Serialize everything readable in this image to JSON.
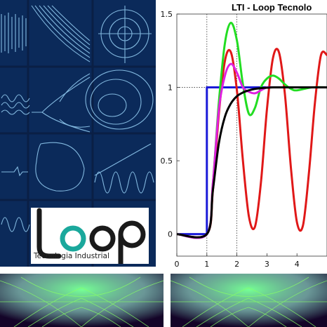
{
  "logo": {
    "wordmark": "Loop",
    "subtitle": "Tecnologia Industrial"
  },
  "chart_data": {
    "type": "line",
    "title": "LTI - Loop Tecnolo",
    "xlim": [
      0,
      5
    ],
    "ylim": [
      -0.15,
      1.5
    ],
    "x_ticks": [
      "0",
      "1",
      "2",
      "3",
      "4"
    ],
    "y_ticks": [
      "0",
      "0.5",
      "1",
      "1.5"
    ],
    "x_tick_values": [
      0,
      1,
      2,
      3,
      4
    ],
    "y_tick_values": [
      0,
      0.5,
      1,
      1.5
    ],
    "reference_lines": [
      1,
      2
    ],
    "setpoint_level": 1,
    "grid": false,
    "legend": "none",
    "series": [
      {
        "color": "#1a1ad8",
        "x": [
          0,
          1,
          1,
          5
        ],
        "y": [
          0,
          0,
          1,
          1
        ]
      },
      {
        "color": "#e01818",
        "x": [
          0,
          1,
          1.2,
          1.4,
          1.6,
          1.8,
          2.0,
          2.2,
          2.4,
          2.6,
          2.8,
          3.0,
          3.2,
          3.4,
          3.6,
          3.8,
          4.0,
          4.2,
          4.4,
          4.6,
          4.8,
          5.0
        ],
        "y": [
          0,
          0,
          0.3,
          0.82,
          1.18,
          1.24,
          0.98,
          0.5,
          0.12,
          0.05,
          0.35,
          0.85,
          1.2,
          1.24,
          0.95,
          0.45,
          0.08,
          0.06,
          0.42,
          0.9,
          1.22,
          1.22
        ]
      },
      {
        "color": "#22dd22",
        "x": [
          0,
          1,
          1.2,
          1.4,
          1.6,
          1.8,
          2.0,
          2.2,
          2.4,
          2.6,
          2.8,
          3.0,
          3.2,
          3.4,
          3.6,
          3.8,
          4.0,
          4.5,
          5.0
        ],
        "y": [
          0,
          0,
          0.35,
          0.9,
          1.3,
          1.44,
          1.32,
          1.02,
          0.82,
          0.86,
          1.0,
          1.06,
          1.08,
          1.06,
          1.02,
          0.99,
          0.98,
          1.0,
          1.0
        ]
      },
      {
        "color": "#e020e0",
        "x": [
          0,
          1,
          1.2,
          1.4,
          1.6,
          1.8,
          2.0,
          2.2,
          2.4,
          2.6,
          2.8,
          3.0,
          3.2,
          3.4,
          3.6,
          4.0,
          5.0
        ],
        "y": [
          0,
          0,
          0.35,
          0.85,
          1.08,
          1.16,
          1.1,
          1.0,
          0.97,
          0.96,
          0.98,
          1.0,
          1.0,
          1.0,
          1.0,
          1.0,
          1.0
        ]
      },
      {
        "color": "#000000",
        "x": [
          0,
          1,
          1.2,
          1.4,
          1.6,
          1.8,
          2.0,
          2.2,
          2.4,
          2.6,
          2.8,
          3.0,
          3.2,
          3.6,
          4.0,
          4.5,
          5.0
        ],
        "y": [
          0,
          0,
          0.3,
          0.62,
          0.8,
          0.89,
          0.94,
          0.965,
          0.98,
          0.99,
          0.995,
          0.998,
          1.0,
          1.0,
          1.0,
          1.0,
          1.0
        ]
      }
    ]
  }
}
